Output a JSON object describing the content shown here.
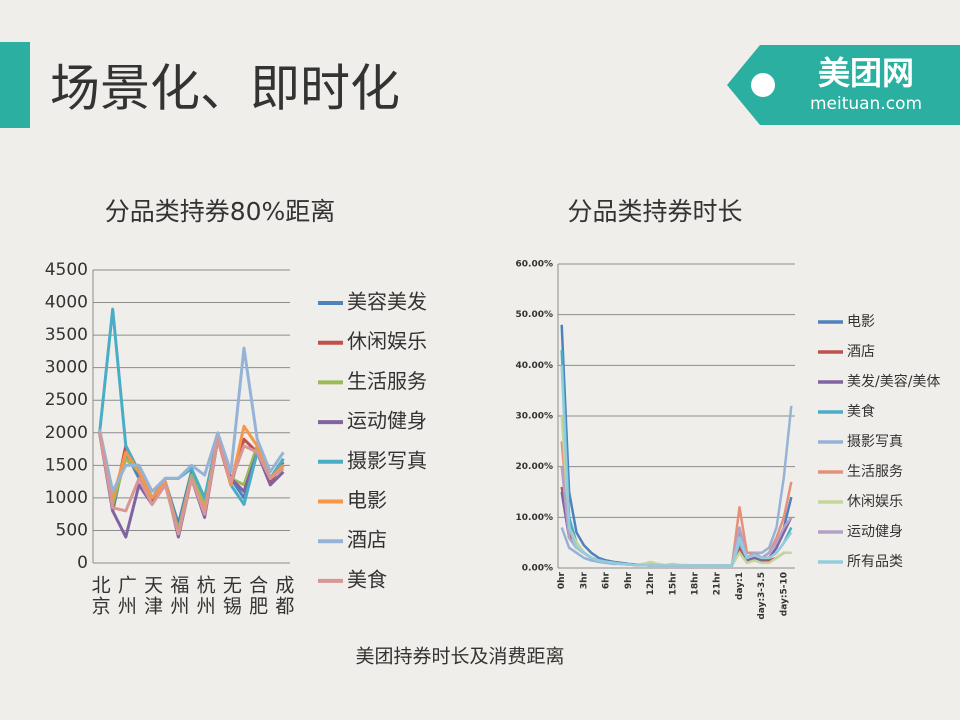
{
  "header": {
    "title": "场景化、即时化",
    "logo": "美团网",
    "logo_url": "meituan.com"
  },
  "caption": "美团持券时长及消费距离",
  "chart_data": [
    {
      "type": "line",
      "title": "分品类持券80%距离",
      "categories": [
        "北京",
        null,
        "广州",
        null,
        "天津",
        null,
        "福州",
        null,
        "杭州",
        null,
        "无锡",
        null,
        "合肥",
        null,
        "成都"
      ],
      "ylim": [
        0,
        4500
      ],
      "yticks": [
        0,
        500,
        1000,
        1500,
        2000,
        2500,
        3000,
        3500,
        4000,
        4500
      ],
      "grid": true,
      "series": [
        {
          "name": "美容美发",
          "color": "#4f81bd",
          "values": [
            2000,
            800,
            1700,
            1300,
            1000,
            1250,
            600,
            1400,
            800,
            1900,
            1300,
            1000,
            1700,
            1300,
            1550
          ]
        },
        {
          "name": "休闲娱乐",
          "color": "#c0504d",
          "values": [
            2000,
            850,
            1800,
            1400,
            950,
            1250,
            450,
            1300,
            800,
            1900,
            1200,
            1900,
            1700,
            1250,
            1500
          ]
        },
        {
          "name": "生活服务",
          "color": "#9bbb59",
          "values": [
            2000,
            900,
            1600,
            1400,
            1000,
            1250,
            500,
            1350,
            900,
            1900,
            1300,
            1200,
            1800,
            1300,
            1600
          ]
        },
        {
          "name": "运动健身",
          "color": "#8064a2",
          "values": [
            2000,
            800,
            400,
            1200,
            900,
            1250,
            400,
            1300,
            700,
            1900,
            1300,
            1100,
            1700,
            1200,
            1400
          ]
        },
        {
          "name": "摄影写真",
          "color": "#4bacc6",
          "values": [
            2000,
            3900,
            1800,
            1400,
            1000,
            1300,
            1300,
            1450,
            1000,
            1950,
            1200,
            900,
            1700,
            1300,
            1600
          ]
        },
        {
          "name": "电影",
          "color": "#f79646",
          "values": [
            2050,
            1000,
            1700,
            1400,
            1000,
            1250,
            450,
            1300,
            800,
            1950,
            1200,
            2100,
            1800,
            1300,
            1500
          ]
        },
        {
          "name": "酒店",
          "color": "#95b3d7",
          "values": [
            2050,
            1100,
            1500,
            1500,
            1100,
            1300,
            1300,
            1500,
            1350,
            2000,
            1400,
            3300,
            1900,
            1400,
            1700
          ]
        },
        {
          "name": "美食",
          "color": "#d99694",
          "values": [
            2000,
            850,
            800,
            1300,
            900,
            1200,
            450,
            1300,
            750,
            1900,
            1250,
            1800,
            1700,
            1300,
            1450
          ]
        }
      ]
    },
    {
      "type": "line",
      "title": "分品类持券时长",
      "categories": [
        "0hr",
        null,
        null,
        "3hr",
        null,
        null,
        "6hr",
        null,
        null,
        "9hr",
        null,
        null,
        "12hr",
        null,
        null,
        "15hr",
        null,
        null,
        "18hr",
        null,
        null,
        "21hr",
        null,
        null,
        "day:1",
        null,
        null,
        "day:3-3.5",
        null,
        null,
        "day:5-10",
        null
      ],
      "ylim": [
        0,
        60
      ],
      "yticks": [
        {
          "value": 0,
          "label": "0.00%"
        },
        {
          "value": 10,
          "label": "10.00%"
        },
        {
          "value": 20,
          "label": "20.00%"
        },
        {
          "value": 30,
          "label": "30.00%"
        },
        {
          "value": 40,
          "label": "40.00%"
        },
        {
          "value": 50,
          "label": "50.00%"
        },
        {
          "value": 60,
          "label": "60.00%"
        }
      ],
      "grid": true,
      "series": [
        {
          "name": "电影",
          "color": "#4f81bd",
          "values": [
            48,
            15,
            7,
            4.5,
            3,
            2,
            1.5,
            1.2,
            1,
            0.8,
            0.7,
            0.6,
            0.6,
            0.5,
            0.5,
            0.5,
            0.5,
            0.5,
            0.5,
            0.5,
            0.5,
            0.5,
            0.5,
            0.5,
            6,
            2,
            3,
            2,
            2,
            4,
            8,
            14
          ]
        },
        {
          "name": "酒店",
          "color": "#c0504d",
          "values": [
            16,
            7,
            4,
            3,
            2,
            1.5,
            1.2,
            1,
            0.8,
            0.7,
            0.6,
            0.6,
            0.5,
            0.5,
            0.5,
            0.5,
            0.5,
            0.5,
            0.5,
            0.5,
            0.5,
            0.5,
            0.5,
            0.5,
            4,
            1.5,
            2,
            1.5,
            1.5,
            2,
            3,
            3
          ]
        },
        {
          "name": "美发/美容/美体",
          "color": "#8064a2",
          "values": [
            15,
            6,
            4,
            3,
            2,
            1.5,
            1.2,
            1,
            0.8,
            0.7,
            0.6,
            0.6,
            0.5,
            0.5,
            0.5,
            0.5,
            0.5,
            0.5,
            0.5,
            0.5,
            0.5,
            0.5,
            0.5,
            0.5,
            5,
            1.5,
            2,
            1.5,
            2,
            4,
            7,
            10
          ]
        },
        {
          "name": "美食",
          "color": "#4bacc6",
          "values": [
            43,
            10,
            5,
            3,
            2,
            1.5,
            1.2,
            1,
            0.8,
            0.7,
            0.6,
            0.6,
            0.5,
            0.5,
            0.5,
            0.5,
            0.5,
            0.5,
            0.5,
            0.5,
            0.5,
            0.5,
            0.5,
            0.5,
            7,
            2,
            3,
            2,
            2,
            3,
            5,
            8
          ]
        },
        {
          "name": "摄影写真",
          "color": "#95b3d7",
          "values": [
            8,
            4,
            3,
            2,
            1.5,
            1.2,
            1,
            0.8,
            0.8,
            0.7,
            0.6,
            0.6,
            0.5,
            0.5,
            0.5,
            0.5,
            0.5,
            0.5,
            0.5,
            0.5,
            0.5,
            0.5,
            0.5,
            0.5,
            5,
            2,
            3,
            3,
            4,
            8,
            18,
            32
          ]
        },
        {
          "name": "生活服务",
          "color": "#e6907a",
          "values": [
            25,
            8,
            5,
            3,
            2,
            1.5,
            1.2,
            1,
            0.8,
            0.7,
            0.6,
            0.6,
            0.5,
            0.5,
            0.5,
            0.5,
            0.5,
            0.5,
            0.5,
            0.5,
            0.5,
            0.5,
            0.5,
            0.5,
            12,
            3,
            3,
            2,
            3,
            6,
            10,
            17
          ]
        },
        {
          "name": "休闲娱乐",
          "color": "#c3d69b",
          "values": [
            30,
            8,
            5,
            3,
            2,
            1.5,
            1.2,
            1,
            0.8,
            0.7,
            0.6,
            0.8,
            1.2,
            0.8,
            0.6,
            0.8,
            0.6,
            0.6,
            0.5,
            0.5,
            0.5,
            0.5,
            0.5,
            0.5,
            3,
            1,
            1.5,
            1,
            1,
            2,
            3,
            3
          ]
        },
        {
          "name": "运动健身",
          "color": "#b3a2c7",
          "values": [
            20,
            6,
            4,
            3,
            2,
            1.5,
            1.2,
            1,
            0.8,
            0.7,
            0.6,
            0.6,
            0.5,
            0.5,
            0.5,
            0.5,
            0.5,
            0.5,
            0.5,
            0.5,
            0.5,
            0.5,
            0.5,
            0.5,
            8,
            2,
            3,
            2,
            3,
            5,
            8,
            10
          ]
        },
        {
          "name": "所有品类",
          "color": "#93cddd",
          "values": [
            40,
            8,
            4,
            3,
            2,
            1.5,
            1.2,
            1,
            0.8,
            0.7,
            0.6,
            0.6,
            0.5,
            0.5,
            0.5,
            0.5,
            0.5,
            0.5,
            0.5,
            0.5,
            0.5,
            0.5,
            0.5,
            0.5,
            6,
            2,
            2.5,
            2,
            2,
            3,
            5,
            7
          ]
        }
      ]
    }
  ]
}
